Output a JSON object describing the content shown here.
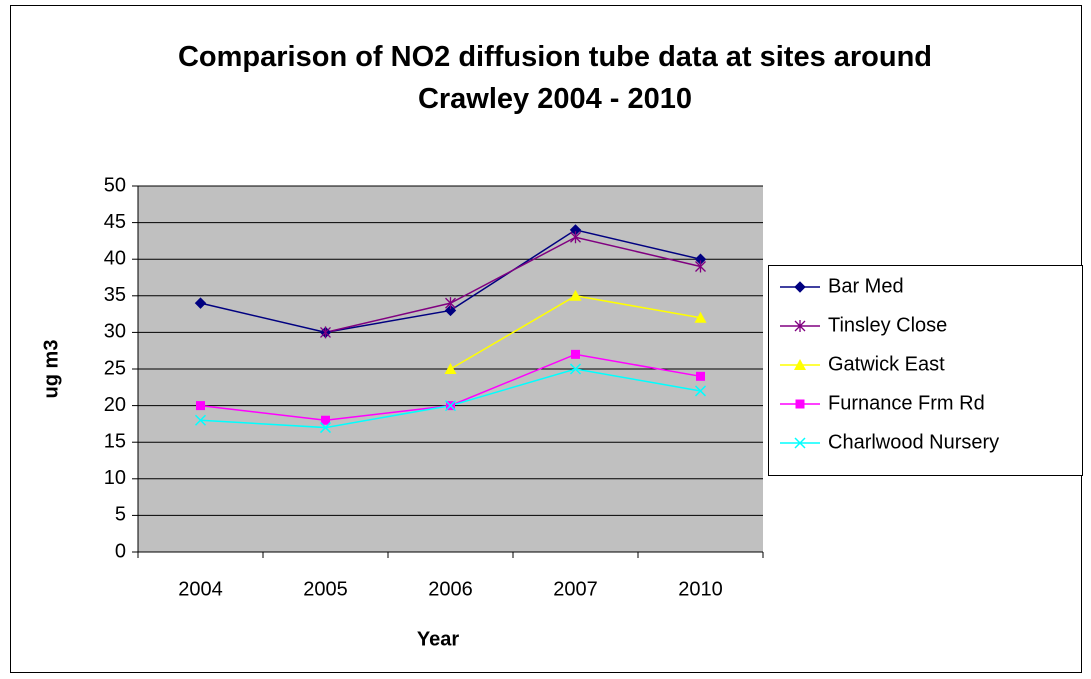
{
  "chart_data": {
    "type": "line",
    "title": "Comparison of NO2 diffusion tube data at sites around Crawley 2004 - 2010",
    "x_label": "Year",
    "y_label": "ug m3",
    "categories": [
      "2004",
      "2005",
      "2006",
      "2007",
      "2010"
    ],
    "series": [
      {
        "name": "Bar Med",
        "color": "#000080",
        "marker": "diamond",
        "values": [
          34,
          30,
          33,
          44,
          40
        ]
      },
      {
        "name": "Tinsley Close",
        "color": "#800080",
        "marker": "star",
        "values": [
          null,
          30,
          34,
          43,
          39
        ]
      },
      {
        "name": "Gatwick East",
        "color": "#FFFF00",
        "marker": "triangle",
        "values": [
          null,
          null,
          25,
          35,
          32
        ]
      },
      {
        "name": "Furnance Frm Rd",
        "color": "#FF00FF",
        "marker": "square",
        "values": [
          20,
          18,
          20,
          27,
          24
        ]
      },
      {
        "name": "Charlwood Nursery",
        "color": "#00FFFF",
        "marker": "x",
        "values": [
          18,
          17,
          20,
          25,
          22
        ]
      }
    ],
    "ylim": [
      0,
      50
    ],
    "yticks": [
      0,
      5,
      10,
      15,
      20,
      25,
      30,
      35,
      40,
      45,
      50
    ],
    "grid": true,
    "legend": "right"
  }
}
